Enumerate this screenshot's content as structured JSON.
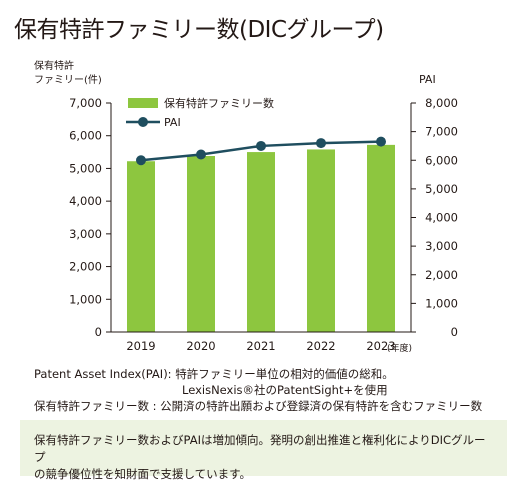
{
  "title": "保有特許ファミリー数(DICグループ)",
  "chart_data": {
    "type": "bar+line",
    "categories": [
      "2019",
      "2020",
      "2021",
      "2022",
      "2023"
    ],
    "x_unit": "(年度)",
    "y_left": {
      "label_line1": "保有特許",
      "label_line2": "ファミリー(件)",
      "ylim": [
        0,
        7000
      ],
      "ticks": [
        "0",
        "1,000",
        "2,000",
        "3,000",
        "4,000",
        "5,000",
        "6,000",
        "7,000"
      ]
    },
    "y_right": {
      "label": "PAI",
      "ylim": [
        0,
        8000
      ],
      "ticks": [
        "0",
        "1,000",
        "2,000",
        "3,000",
        "4,000",
        "5,000",
        "6,000",
        "7,000",
        "8,000"
      ]
    },
    "series": [
      {
        "name": "保有特許ファミリー数",
        "type": "bar",
        "axis": "left",
        "color": "#8dc63f",
        "values": [
          5220,
          5380,
          5500,
          5580,
          5720
        ]
      },
      {
        "name": "PAI",
        "type": "line",
        "axis": "right",
        "color": "#1f4e5f",
        "values": [
          6000,
          6200,
          6500,
          6600,
          6650
        ]
      }
    ],
    "legend_position": "top-left",
    "grid": false
  },
  "notes": {
    "line1": "Patent Asset Index(PAI): 特許ファミリー単位の相対的価値の総和。",
    "line2": "LexisNexis®社のPatentSight+を使用",
    "line3": "保有特許ファミリー数 : 公開済の特許出願および登録済の保有特許を含むファミリー数"
  },
  "summary": {
    "line1": "保有特許ファミリー数およびPAIは増加傾向。発明の創出推進と権利化によりDICグループ",
    "line2": "の競争優位性を知財面で支援しています。"
  }
}
